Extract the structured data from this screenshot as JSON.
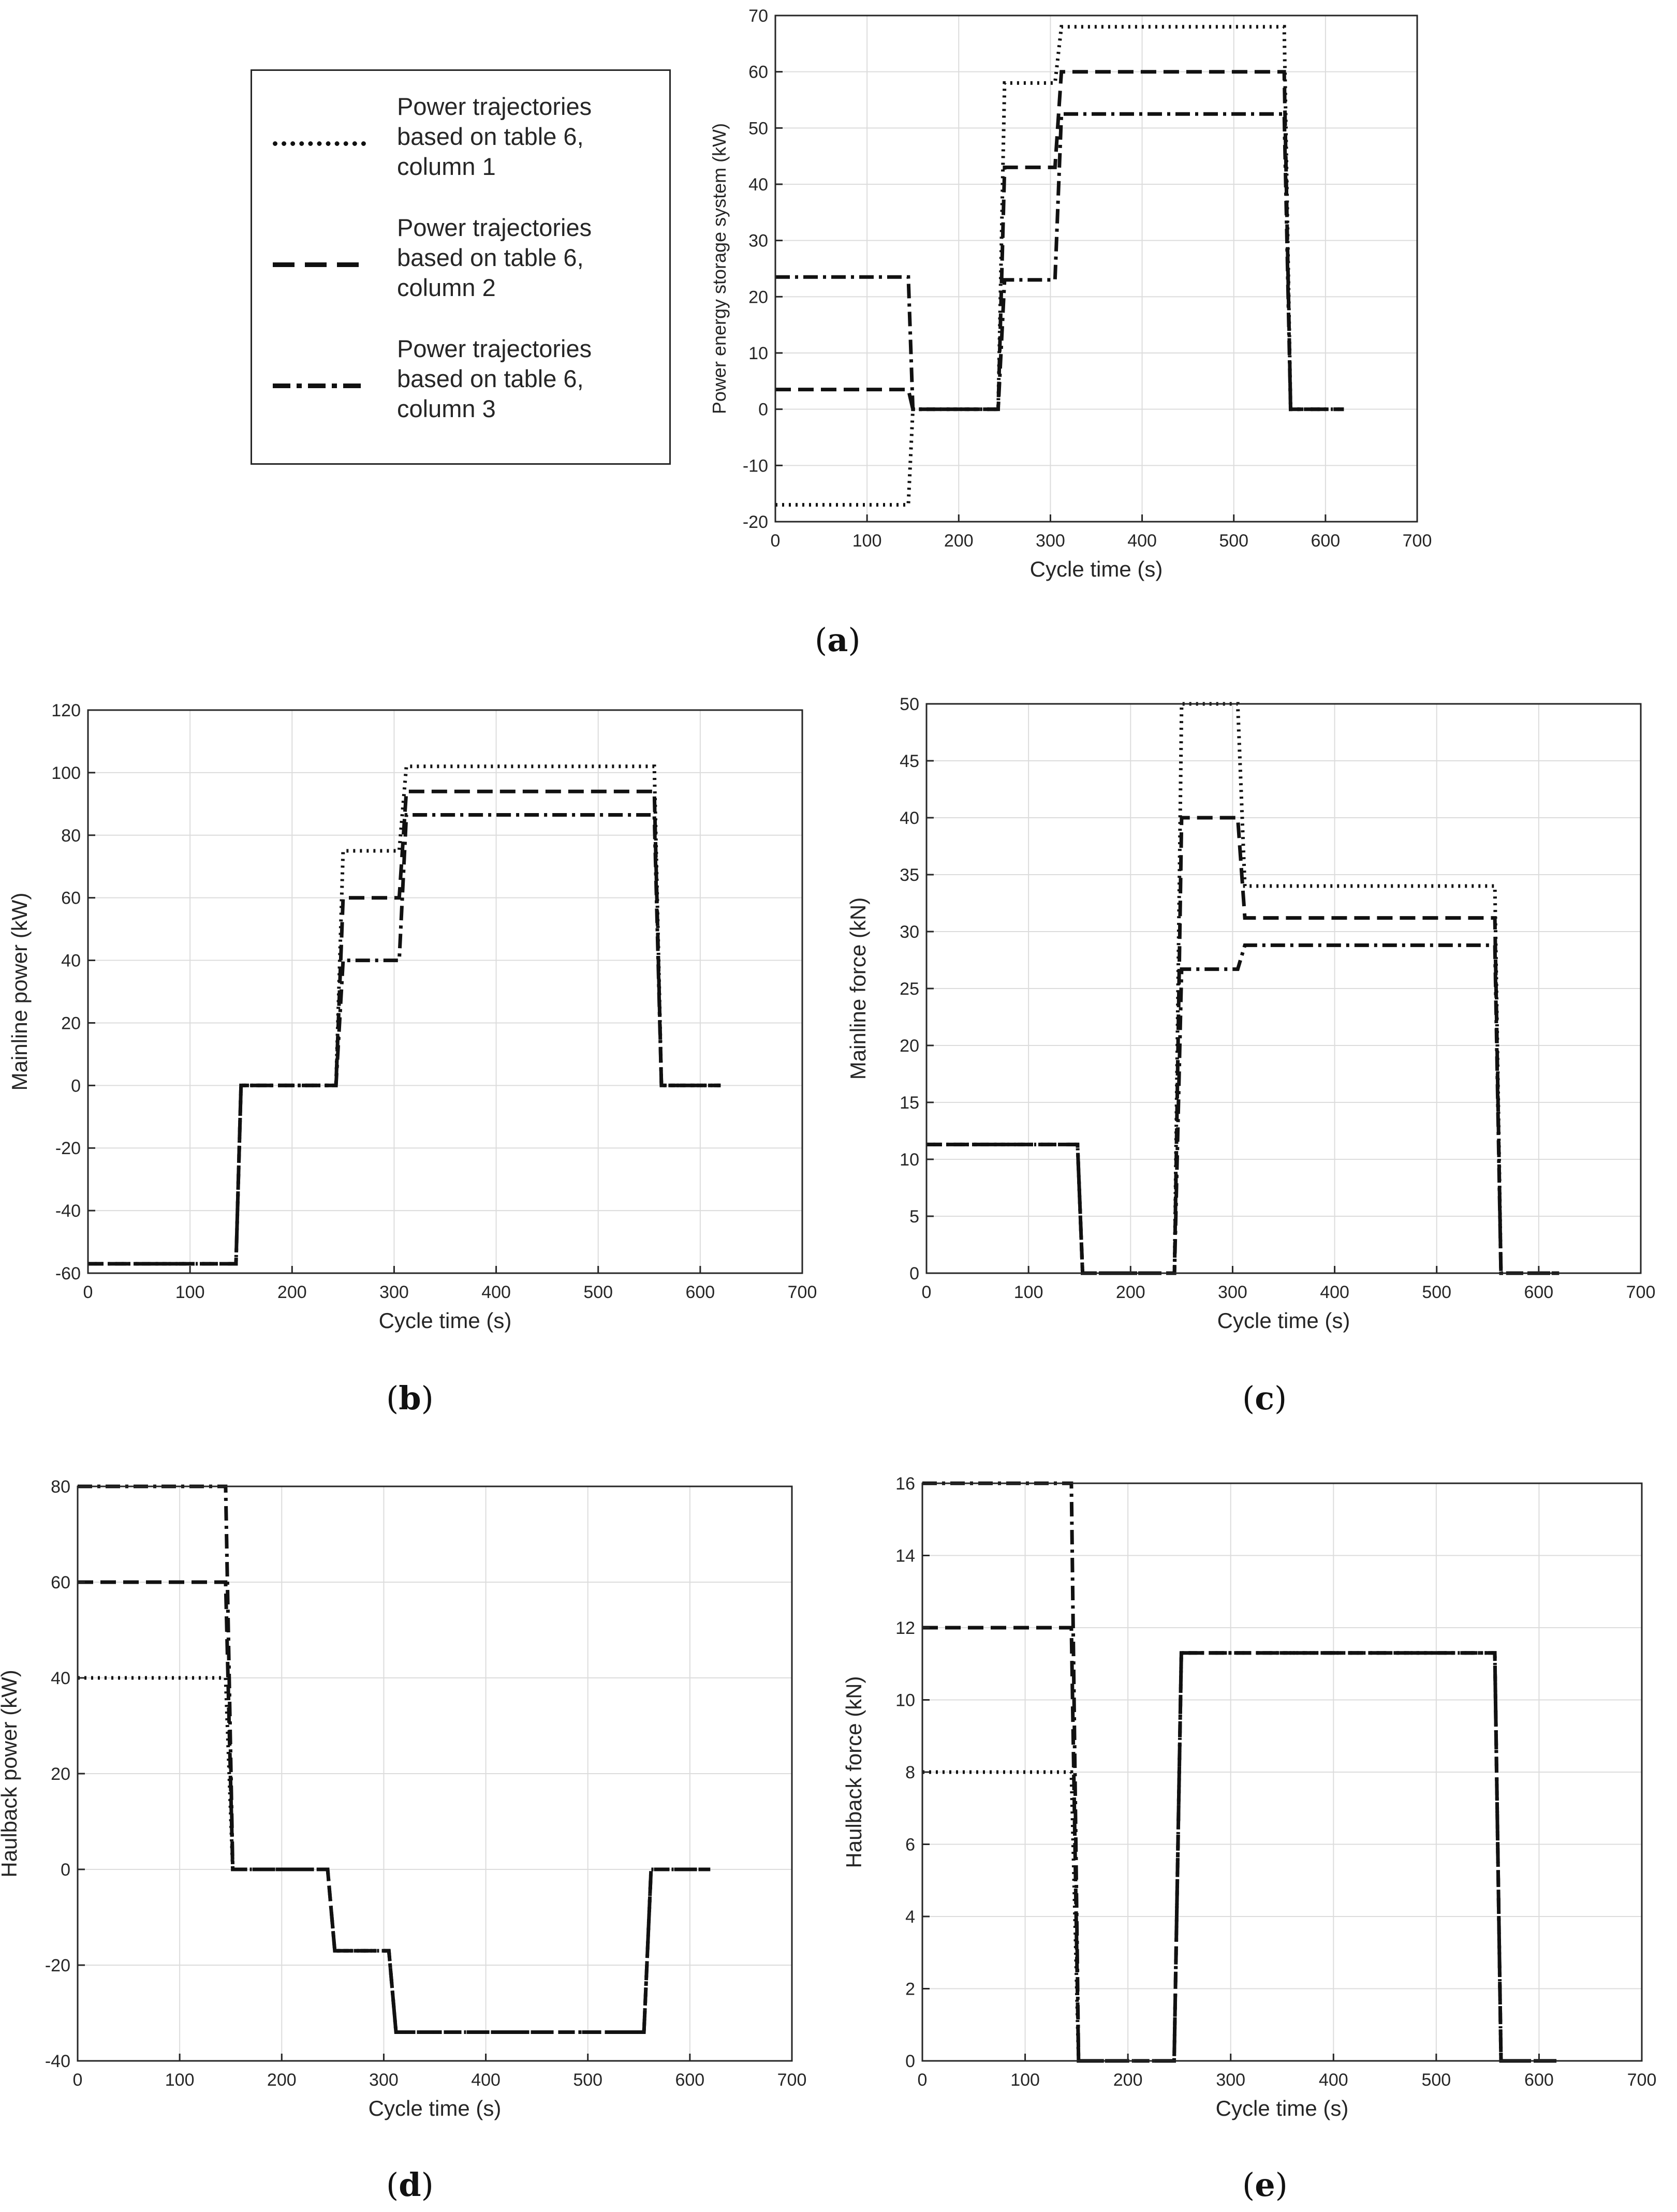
{
  "legend": {
    "entries": [
      {
        "label": "Power trajectories based on table 6, column 1",
        "lines": [
          "Power trajectories",
          "based on table 6,",
          "column 1"
        ],
        "style": "dotted"
      },
      {
        "label": "Power trajectories based on table 6, column 2",
        "lines": [
          "Power trajectories",
          "based on table 6,",
          "column 2"
        ],
        "style": "dashed"
      },
      {
        "label": "Power trajectories based on table 6, column 3",
        "lines": [
          "Power trajectories",
          "based on table 6,",
          "column 3"
        ],
        "style": "dashdot"
      }
    ]
  },
  "panel_labels": [
    "a",
    "b",
    "c",
    "d",
    "e"
  ],
  "chart_data": [
    {
      "id": "a",
      "type": "line",
      "xlabel": "Cycle time (s)",
      "ylabel": "Power energy storage system (kW)",
      "xlim": [
        0,
        700
      ],
      "ylim": [
        -20,
        70
      ],
      "xticks": [
        0,
        100,
        200,
        300,
        400,
        500,
        600,
        700
      ],
      "yticks": [
        -20,
        -10,
        0,
        10,
        20,
        30,
        40,
        50,
        60,
        70
      ],
      "grid": true,
      "series": [
        {
          "name": "column 1",
          "style": "dotted",
          "points": [
            [
              0,
              -17
            ],
            [
              145,
              -17
            ],
            [
              150,
              0
            ],
            [
              243,
              0
            ],
            [
              250,
              58
            ],
            [
              305,
              58
            ],
            [
              312,
              68
            ],
            [
              555,
              68
            ],
            [
              562,
              0
            ],
            [
              620,
              0
            ]
          ]
        },
        {
          "name": "column 2",
          "style": "dashed",
          "points": [
            [
              0,
              3.5
            ],
            [
              145,
              3.5
            ],
            [
              150,
              0
            ],
            [
              243,
              0
            ],
            [
              250,
              43
            ],
            [
              305,
              43
            ],
            [
              312,
              60
            ],
            [
              555,
              60
            ],
            [
              562,
              0
            ],
            [
              620,
              0
            ]
          ]
        },
        {
          "name": "column 3",
          "style": "dashdot",
          "points": [
            [
              0,
              23.5
            ],
            [
              145,
              23.5
            ],
            [
              150,
              0
            ],
            [
              243,
              0
            ],
            [
              250,
              23
            ],
            [
              305,
              23
            ],
            [
              312,
              52.5
            ],
            [
              555,
              52.5
            ],
            [
              562,
              0
            ],
            [
              620,
              0
            ]
          ]
        }
      ]
    },
    {
      "id": "b",
      "type": "line",
      "xlabel": "Cycle time (s)",
      "ylabel": "Mainline power (kW)",
      "xlim": [
        0,
        700
      ],
      "ylim": [
        -60,
        120
      ],
      "xticks": [
        0,
        100,
        200,
        300,
        400,
        500,
        600,
        700
      ],
      "yticks": [
        -60,
        -40,
        -20,
        0,
        20,
        40,
        60,
        80,
        100,
        120
      ],
      "grid": true,
      "series": [
        {
          "name": "column 1",
          "style": "dotted",
          "points": [
            [
              0,
              -57
            ],
            [
              145,
              -57
            ],
            [
              150,
              0
            ],
            [
              243,
              0
            ],
            [
              250,
              75
            ],
            [
              305,
              75
            ],
            [
              312,
              102
            ],
            [
              555,
              102
            ],
            [
              562,
              0
            ],
            [
              620,
              0
            ]
          ]
        },
        {
          "name": "column 2",
          "style": "dashed",
          "points": [
            [
              0,
              -57
            ],
            [
              145,
              -57
            ],
            [
              150,
              0
            ],
            [
              243,
              0
            ],
            [
              250,
              60
            ],
            [
              305,
              60
            ],
            [
              312,
              94
            ],
            [
              555,
              94
            ],
            [
              562,
              0
            ],
            [
              620,
              0
            ]
          ]
        },
        {
          "name": "column 3",
          "style": "dashdot",
          "points": [
            [
              0,
              -57
            ],
            [
              145,
              -57
            ],
            [
              150,
              0
            ],
            [
              243,
              0
            ],
            [
              250,
              40
            ],
            [
              305,
              40
            ],
            [
              312,
              86.5
            ],
            [
              555,
              86.5
            ],
            [
              562,
              0
            ],
            [
              620,
              0
            ]
          ]
        }
      ]
    },
    {
      "id": "c",
      "type": "line",
      "xlabel": "Cycle time (s)",
      "ylabel": "Mainline force (kN)",
      "xlim": [
        0,
        700
      ],
      "ylim": [
        0,
        50
      ],
      "xticks": [
        0,
        100,
        200,
        300,
        400,
        500,
        600,
        700
      ],
      "yticks": [
        0,
        5,
        10,
        15,
        20,
        25,
        30,
        35,
        40,
        45,
        50
      ],
      "grid": true,
      "series": [
        {
          "name": "column 1",
          "style": "dotted",
          "points": [
            [
              0,
              11.3
            ],
            [
              148,
              11.3
            ],
            [
              153,
              0
            ],
            [
              243,
              0
            ],
            [
              250,
              50
            ],
            [
              305,
              50
            ],
            [
              312,
              34
            ],
            [
              557,
              34
            ],
            [
              563,
              0
            ],
            [
              620,
              0
            ]
          ]
        },
        {
          "name": "column 2",
          "style": "dashed",
          "points": [
            [
              0,
              11.3
            ],
            [
              148,
              11.3
            ],
            [
              153,
              0
            ],
            [
              243,
              0
            ],
            [
              250,
              40
            ],
            [
              305,
              40
            ],
            [
              312,
              31.2
            ],
            [
              557,
              31.2
            ],
            [
              563,
              0
            ],
            [
              620,
              0
            ]
          ]
        },
        {
          "name": "column 3",
          "style": "dashdot",
          "points": [
            [
              0,
              11.3
            ],
            [
              148,
              11.3
            ],
            [
              153,
              0
            ],
            [
              243,
              0
            ],
            [
              250,
              26.7
            ],
            [
              305,
              26.7
            ],
            [
              312,
              28.8
            ],
            [
              557,
              28.8
            ],
            [
              563,
              0
            ],
            [
              620,
              0
            ]
          ]
        }
      ]
    },
    {
      "id": "d",
      "type": "line",
      "xlabel": "Cycle time (s)",
      "ylabel": "Haulback power (kW)",
      "xlim": [
        0,
        700
      ],
      "ylim": [
        -40,
        80
      ],
      "xticks": [
        0,
        100,
        200,
        300,
        400,
        500,
        600,
        700
      ],
      "yticks": [
        -40,
        -20,
        0,
        20,
        40,
        60,
        80
      ],
      "grid": true,
      "series": [
        {
          "name": "column 1",
          "style": "dotted",
          "points": [
            [
              0,
              40
            ],
            [
              145,
              40
            ],
            [
              152,
              0
            ],
            [
              245,
              0
            ],
            [
              252,
              -17
            ],
            [
              305,
              -17
            ],
            [
              312,
              -34
            ],
            [
              555,
              -34
            ],
            [
              562,
              0
            ],
            [
              620,
              0
            ]
          ]
        },
        {
          "name": "column 2",
          "style": "dashed",
          "points": [
            [
              0,
              60
            ],
            [
              145,
              60
            ],
            [
              152,
              0
            ],
            [
              245,
              0
            ],
            [
              252,
              -17
            ],
            [
              305,
              -17
            ],
            [
              312,
              -34
            ],
            [
              555,
              -34
            ],
            [
              562,
              0
            ],
            [
              620,
              0
            ]
          ]
        },
        {
          "name": "column 3",
          "style": "dashdot",
          "points": [
            [
              0,
              80
            ],
            [
              145,
              80
            ],
            [
              152,
              0
            ],
            [
              245,
              0
            ],
            [
              252,
              -17
            ],
            [
              305,
              -17
            ],
            [
              312,
              -34
            ],
            [
              555,
              -34
            ],
            [
              562,
              0
            ],
            [
              620,
              0
            ]
          ]
        }
      ]
    },
    {
      "id": "e",
      "type": "line",
      "xlabel": "Cycle time (s)",
      "ylabel": "Haulback force (kN)",
      "xlim": [
        0,
        700
      ],
      "ylim": [
        0,
        16
      ],
      "xticks": [
        0,
        100,
        200,
        300,
        400,
        500,
        600,
        700
      ],
      "yticks": [
        0,
        2,
        4,
        6,
        8,
        10,
        12,
        14,
        16
      ],
      "grid": true,
      "series": [
        {
          "name": "column 1",
          "style": "dotted",
          "points": [
            [
              0,
              8
            ],
            [
              145,
              8
            ],
            [
              152,
              0
            ],
            [
              245,
              0
            ],
            [
              252,
              11.3
            ],
            [
              557,
              11.3
            ],
            [
              563,
              0
            ],
            [
              620,
              0
            ]
          ]
        },
        {
          "name": "column 2",
          "style": "dashed",
          "points": [
            [
              0,
              12
            ],
            [
              145,
              12
            ],
            [
              152,
              0
            ],
            [
              245,
              0
            ],
            [
              252,
              11.3
            ],
            [
              557,
              11.3
            ],
            [
              563,
              0
            ],
            [
              620,
              0
            ]
          ]
        },
        {
          "name": "column 3",
          "style": "dashdot",
          "points": [
            [
              0,
              16
            ],
            [
              145,
              16
            ],
            [
              152,
              0
            ],
            [
              245,
              0
            ],
            [
              252,
              11.3
            ],
            [
              557,
              11.3
            ],
            [
              563,
              0
            ],
            [
              620,
              0
            ]
          ]
        }
      ]
    }
  ]
}
